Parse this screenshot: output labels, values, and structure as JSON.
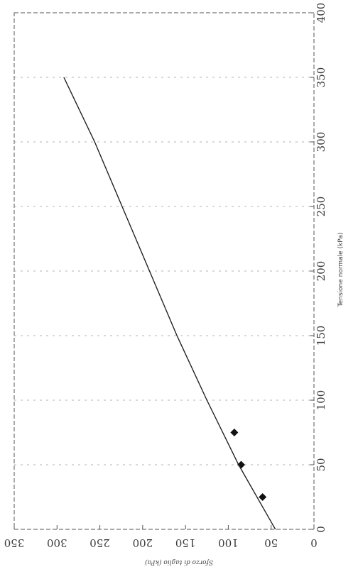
{
  "chart_data": {
    "type": "scatter",
    "orientation": "rotated 90 degrees clockwise",
    "title": "",
    "xlabel": "Tensione normale (kPa)",
    "ylabel": "Sforzo di taglio (kPa)",
    "xlim": [
      0,
      400
    ],
    "ylim": [
      0,
      350
    ],
    "x_ticks": [
      "0",
      "50",
      "100",
      "150",
      "200",
      "250",
      "300",
      "350",
      "400"
    ],
    "y_ticks": [
      "0",
      "50",
      "100",
      "150",
      "200",
      "250",
      "300",
      "350"
    ],
    "grid": "dashed vertical lines at x-axis ticks",
    "legend": "none",
    "colors": {
      "points": "#111111",
      "line": "#222222",
      "grid": "#9a9a9a"
    },
    "series": [
      {
        "type": "scatter",
        "points": [
          {
            "x": 25,
            "y": 60
          },
          {
            "x": 50,
            "y": 85
          },
          {
            "x": 75,
            "y": 93
          }
        ]
      },
      {
        "type": "line",
        "points": [
          {
            "x": 0,
            "y": 45
          },
          {
            "x": 50,
            "y": 88
          },
          {
            "x": 100,
            "y": 125
          },
          {
            "x": 150,
            "y": 160
          },
          {
            "x": 200,
            "y": 192
          },
          {
            "x": 250,
            "y": 224
          },
          {
            "x": 300,
            "y": 256
          },
          {
            "x": 350,
            "y": 292
          }
        ]
      }
    ]
  }
}
